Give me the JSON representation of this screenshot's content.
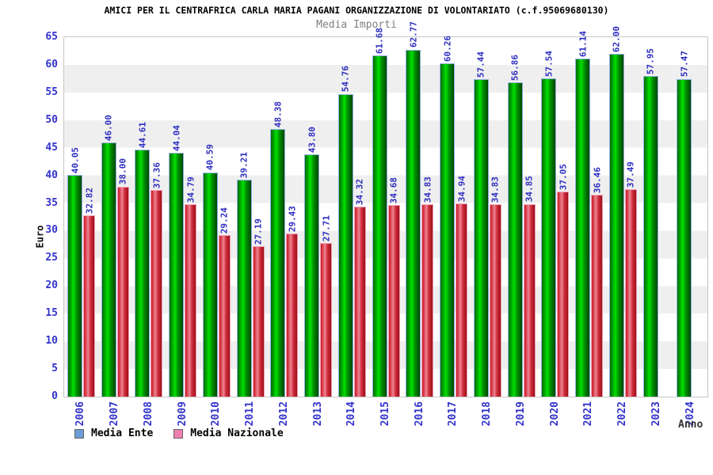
{
  "title": "AMICI PER IL CENTRAFRICA CARLA MARIA PAGANI ORGANIZZAZIONE DI VOLONTARIATO (c.f.95069680130)",
  "subtitle": "Media Importi",
  "y_axis": {
    "label": "Euro",
    "min": 0,
    "max": 65,
    "step": 5
  },
  "x_axis": {
    "label": "Anno"
  },
  "legend": [
    {
      "label": "Media Ente",
      "swatch_color": "#6b9dd6"
    },
    {
      "label": "Media Nazionale",
      "swatch_color": "#ee7fae"
    }
  ],
  "colors": {
    "axis_text": "#3333cc",
    "value_text": "#2d2dc0",
    "band_gray": "#efefef",
    "bar_ente_main": "#00e000",
    "bar_ente_border": "#8fb2dd",
    "bar_naz_main": "#ec8492",
    "bar_naz_border": "#eda0b8"
  },
  "chart_data": {
    "type": "bar",
    "title": "AMICI PER IL CENTRAFRICA CARLA MARIA PAGANI ORGANIZZAZIONE DI VOLONTARIATO (c.f.95069680130)",
    "subtitle": "Media Importi",
    "xlabel": "Anno",
    "ylabel": "Euro",
    "ylim": [
      0,
      65
    ],
    "ytick_step": 5,
    "grid": "alternating-horizontal-bands",
    "legend_position": "bottom-left",
    "categories": [
      "2006",
      "2007",
      "2008",
      "2009",
      "2010",
      "2011",
      "2012",
      "2013",
      "2014",
      "2015",
      "2016",
      "2017",
      "2018",
      "2019",
      "2020",
      "2021",
      "2022",
      "2023",
      "2024"
    ],
    "series": [
      {
        "name": "Media Ente",
        "values": [
          40.05,
          46.0,
          44.61,
          44.04,
          40.59,
          39.21,
          48.38,
          43.8,
          54.76,
          61.68,
          62.77,
          60.26,
          57.44,
          56.86,
          57.54,
          61.14,
          62.0,
          57.95,
          57.47
        ]
      },
      {
        "name": "Media Nazionale",
        "values": [
          32.82,
          38.0,
          37.36,
          34.79,
          29.24,
          27.19,
          29.43,
          27.71,
          34.32,
          34.68,
          34.83,
          34.94,
          34.83,
          34.85,
          37.05,
          36.46,
          37.49,
          null,
          null
        ]
      }
    ]
  }
}
